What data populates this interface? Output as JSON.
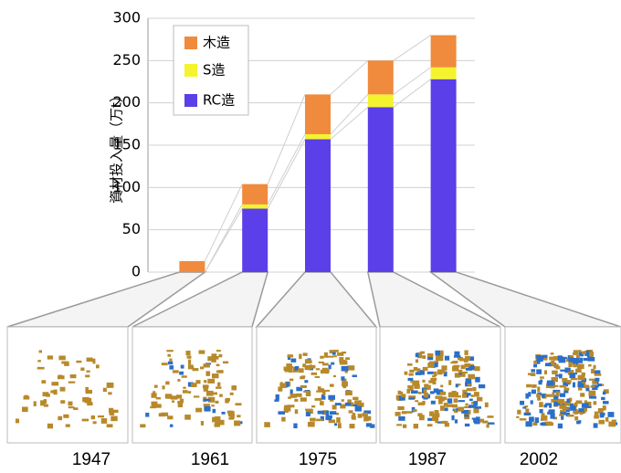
{
  "chart_data": {
    "type": "bar",
    "stacked": true,
    "y_label": "資材投入量（万t）",
    "categories": [
      "1947",
      "1961",
      "1975",
      "1987",
      "2002"
    ],
    "series": [
      {
        "name": "RC造",
        "color": "#5b3fe8",
        "values": [
          0,
          75,
          157,
          195,
          228
        ]
      },
      {
        "name": "S造",
        "color": "#f4f42e",
        "values": [
          0,
          5,
          6,
          15,
          14
        ]
      },
      {
        "name": "木造",
        "color": "#f08a3c",
        "values": [
          13,
          24,
          47,
          40,
          38
        ]
      }
    ],
    "ylim": [
      0,
      300
    ],
    "yticks": [
      0,
      50,
      100,
      150,
      200,
      250,
      300
    ],
    "grid": true
  }
}
